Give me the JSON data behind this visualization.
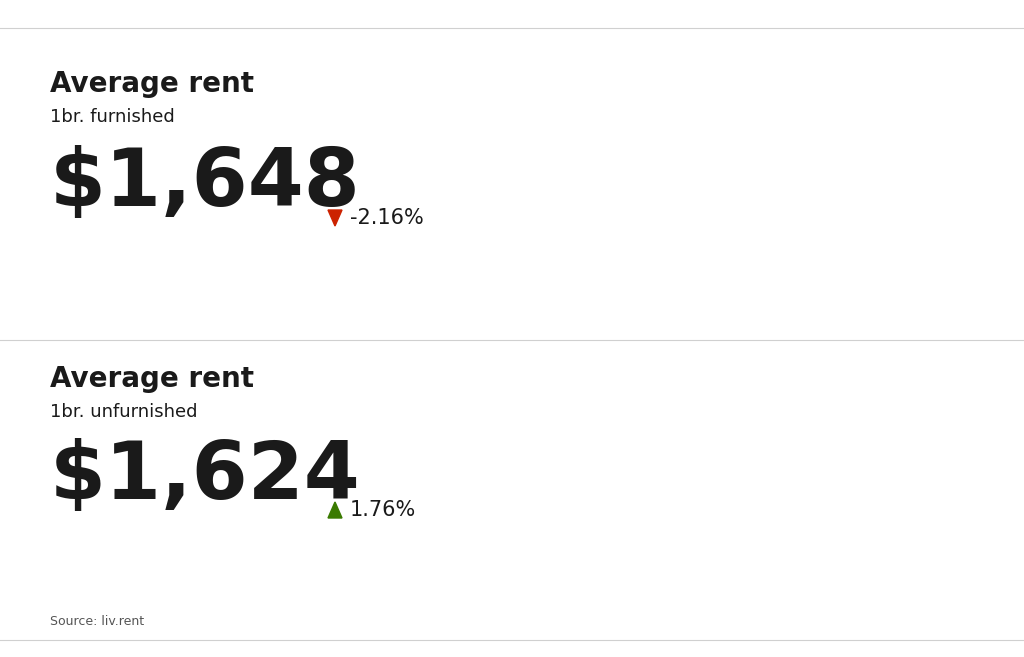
{
  "background_color": "#ffffff",
  "divider_color": "#d0d0d0",
  "title1": "Average rent",
  "subtitle1": "1br. furnished",
  "value1": "$1,648",
  "change1": "-2.16%",
  "arrow1_color": "#cc2200",
  "title2": "Average rent",
  "subtitle2": "1br. unfurnished",
  "value2": "$1,624",
  "change2": "1.76%",
  "arrow2_color": "#3a7a00",
  "source_text": "Source: liv.rent",
  "source_color": "#555555",
  "title_fontsize": 20,
  "subtitle_fontsize": 13,
  "value_fontsize": 58,
  "change_fontsize": 15,
  "source_fontsize": 9,
  "text_color": "#1a1a1a",
  "fig_width": 10.24,
  "fig_height": 6.57,
  "dpi": 100
}
